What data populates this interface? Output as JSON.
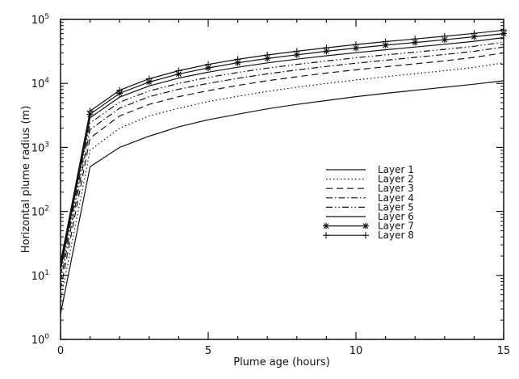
{
  "chart_data": {
    "type": "line",
    "title": "",
    "xlabel": "Plume age (hours)",
    "ylabel": "Horizontal plume radius (m)",
    "xlim": [
      0,
      15
    ],
    "ylim": [
      1,
      100000
    ],
    "yscale": "log",
    "grid": false,
    "legend_position": "center-right",
    "x_ticks": [
      0,
      5,
      10,
      15
    ],
    "y_ticks": [
      {
        "value": 1,
        "base": "10",
        "exp": "0"
      },
      {
        "value": 10,
        "base": "10",
        "exp": "1"
      },
      {
        "value": 100,
        "base": "10",
        "exp": "2"
      },
      {
        "value": 1000,
        "base": "10",
        "exp": "3"
      },
      {
        "value": 10000,
        "base": "10",
        "exp": "4"
      },
      {
        "value": 100000,
        "base": "10",
        "exp": "5"
      }
    ],
    "x": [
      0,
      1,
      2,
      3,
      4,
      5,
      6,
      7,
      8,
      9,
      10,
      11,
      12,
      13,
      14,
      15
    ],
    "series": [
      {
        "name": "Layer 1",
        "style": "solid",
        "marker": "none",
        "values": [
          2.5,
          500,
          1000,
          1500,
          2100,
          2700,
          3300,
          4000,
          4700,
          5400,
          6200,
          7000,
          7800,
          8700,
          9700,
          11000
        ]
      },
      {
        "name": "Layer 2",
        "style": "dotted",
        "marker": "none",
        "values": [
          4,
          900,
          2000,
          3100,
          4100,
          5200,
          6300,
          7500,
          8700,
          10000,
          11300,
          12700,
          14200,
          15800,
          17800,
          21000
        ]
      },
      {
        "name": "Layer 3",
        "style": "dashed",
        "marker": "none",
        "values": [
          6,
          1400,
          3100,
          4700,
          6200,
          7700,
          9300,
          11000,
          12700,
          14500,
          16300,
          18200,
          20200,
          22500,
          25500,
          30000
        ]
      },
      {
        "name": "Layer 4",
        "style": "dashdot",
        "marker": "none",
        "values": [
          8,
          1900,
          4100,
          6200,
          8100,
          10000,
          12000,
          14100,
          16200,
          18400,
          20700,
          23000,
          25500,
          28300,
          31700,
          37000
        ]
      },
      {
        "name": "Layer 5",
        "style": "dashdotdot",
        "marker": "none",
        "values": [
          10,
          2400,
          5100,
          7600,
          10000,
          12400,
          14800,
          17300,
          19800,
          22400,
          25100,
          27900,
          30800,
          34000,
          38000,
          44000
        ]
      },
      {
        "name": "Layer 6",
        "style": "solid",
        "marker": "none",
        "values": [
          12,
          2900,
          6100,
          9100,
          12100,
          15000,
          17900,
          20900,
          23900,
          27000,
          30200,
          33500,
          37000,
          40800,
          45500,
          52000
        ]
      },
      {
        "name": "Layer 7",
        "style": "solid",
        "marker": "asterisk",
        "values": [
          14,
          3300,
          7000,
          10500,
          14000,
          17500,
          21000,
          24500,
          28000,
          31800,
          35600,
          39500,
          43600,
          48000,
          53500,
          60000
        ]
      },
      {
        "name": "Layer 8",
        "style": "solid",
        "marker": "plus",
        "values": [
          16,
          3700,
          7800,
          11800,
          15800,
          19800,
          23800,
          27800,
          31800,
          36000,
          40500,
          45000,
          49500,
          54500,
          60500,
          68000
        ]
      }
    ]
  }
}
